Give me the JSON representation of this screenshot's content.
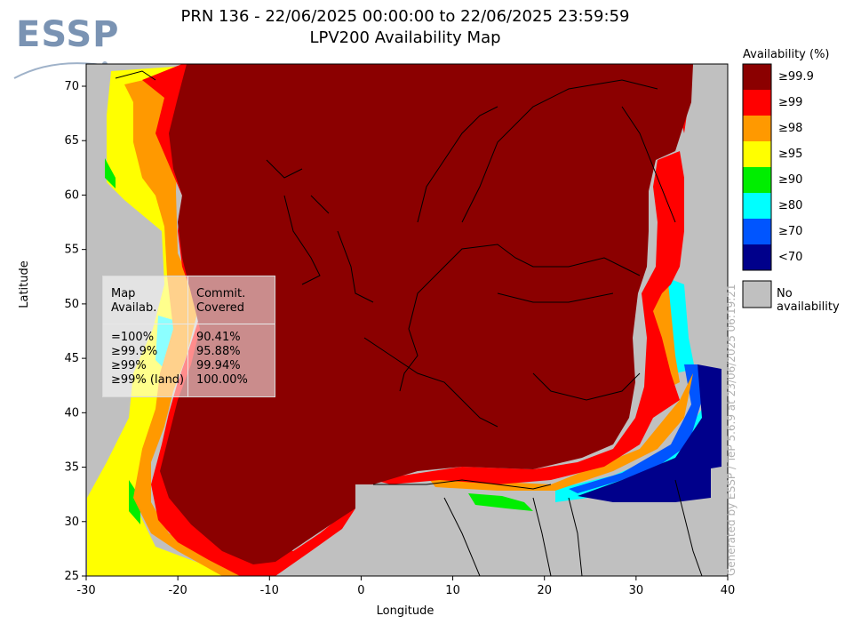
{
  "logo": {
    "text": "ESSP"
  },
  "title": {
    "line1": "PRN 136 - 22/06/2025 00:00:00 to 22/06/2025 23:59:59",
    "line2": "LPV200 Availability Map"
  },
  "axes": {
    "x_label": "Longitude",
    "y_label": "Latitude",
    "x_ticks": [
      "-30",
      "-20",
      "-10",
      "0",
      "10",
      "20",
      "30",
      "40"
    ],
    "y_ticks": [
      "70",
      "65",
      "60",
      "55",
      "50",
      "45",
      "40",
      "35",
      "30",
      "25"
    ]
  },
  "legend": {
    "title": "Availability (%)",
    "items": [
      {
        "label": "≥99.9",
        "color": "#8b0000"
      },
      {
        "label": "≥99",
        "color": "#ff0000"
      },
      {
        "label": "≥98",
        "color": "#ff9900"
      },
      {
        "label": "≥95",
        "color": "#ffff00"
      },
      {
        "label": "≥90",
        "color": "#00ee00"
      },
      {
        "label": "≥80",
        "color": "#00ffff"
      },
      {
        "label": "≥70",
        "color": "#0055ff"
      },
      {
        "label": "<70",
        "color": "#00008b"
      }
    ],
    "no_availability": {
      "label": "No availability",
      "color": "#c0c0c0"
    }
  },
  "stats": {
    "header_left": [
      "Map",
      "Availab."
    ],
    "header_right": [
      "Commit.",
      "Covered"
    ],
    "rows": [
      {
        "level": "=100%",
        "value": "90.41%"
      },
      {
        "level": "≥99.9%",
        "value": "95.88%"
      },
      {
        "level": "≥99%",
        "value": "99.94%"
      },
      {
        "level": "≥99% (land)",
        "value": "100.00%"
      }
    ]
  },
  "credit": "Generated by ESSP / TeP 5.6.9 at 23/06/2025 06:19:21"
}
